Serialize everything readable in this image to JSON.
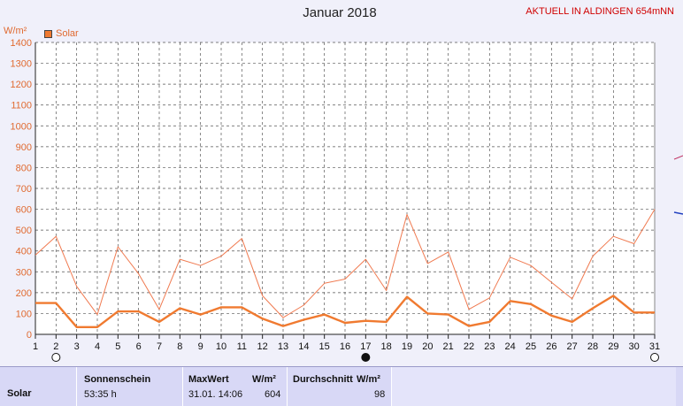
{
  "chart_data": {
    "type": "line",
    "title": "Januar 2018",
    "y_unit": "W/m²",
    "ylim": [
      0,
      1400
    ],
    "y_ticks": [
      0,
      100,
      200,
      300,
      400,
      500,
      600,
      700,
      800,
      900,
      1000,
      1100,
      1200,
      1300,
      1400
    ],
    "x": [
      1,
      2,
      3,
      4,
      5,
      6,
      7,
      8,
      9,
      10,
      11,
      12,
      13,
      14,
      15,
      16,
      17,
      18,
      19,
      20,
      21,
      22,
      23,
      24,
      25,
      26,
      27,
      28,
      29,
      30,
      31
    ],
    "grid": true,
    "legend_position": "top-left",
    "series": [
      {
        "name": "Solar",
        "style": "max",
        "color": "#f07a50",
        "values": [
          380,
          470,
          230,
          95,
          420,
          290,
          120,
          360,
          330,
          375,
          460,
          185,
          80,
          140,
          245,
          265,
          360,
          210,
          575,
          340,
          395,
          120,
          175,
          370,
          330,
          250,
          170,
          375,
          470,
          435,
          600
        ]
      },
      {
        "name": "",
        "style": "avg",
        "color": "#f07a30",
        "values": [
          150,
          150,
          35,
          35,
          110,
          110,
          60,
          125,
          95,
          130,
          130,
          75,
          40,
          70,
          95,
          55,
          65,
          60,
          180,
          100,
          95,
          40,
          60,
          160,
          145,
          90,
          60,
          125,
          185,
          105,
          105
        ]
      }
    ],
    "moon_symbols": [
      {
        "day": 2,
        "phase": "full"
      },
      {
        "day": 17,
        "phase": "new"
      },
      {
        "day": 31,
        "phase": "full"
      }
    ]
  },
  "header_right": "AKTUELL IN ALDINGEN 654mNN",
  "colors": {
    "grid": "#555555",
    "axis_label": "#e06a30",
    "plot_bg": "#ffffff",
    "table_bg": "#d8d8f6"
  },
  "table": {
    "row_label": "Solar",
    "sonnenschein_header": "Sonnenschein",
    "sonnenschein_value": "53:35 h",
    "maxwert_header": "MaxWert",
    "maxwert_unit": "W/m²",
    "maxwert_date": "31.01.  14:06",
    "maxwert_value": "604",
    "durchschnitt_header": "Durchschnitt",
    "durchschnitt_unit": "W/m²",
    "durchschnitt_value": "98"
  }
}
